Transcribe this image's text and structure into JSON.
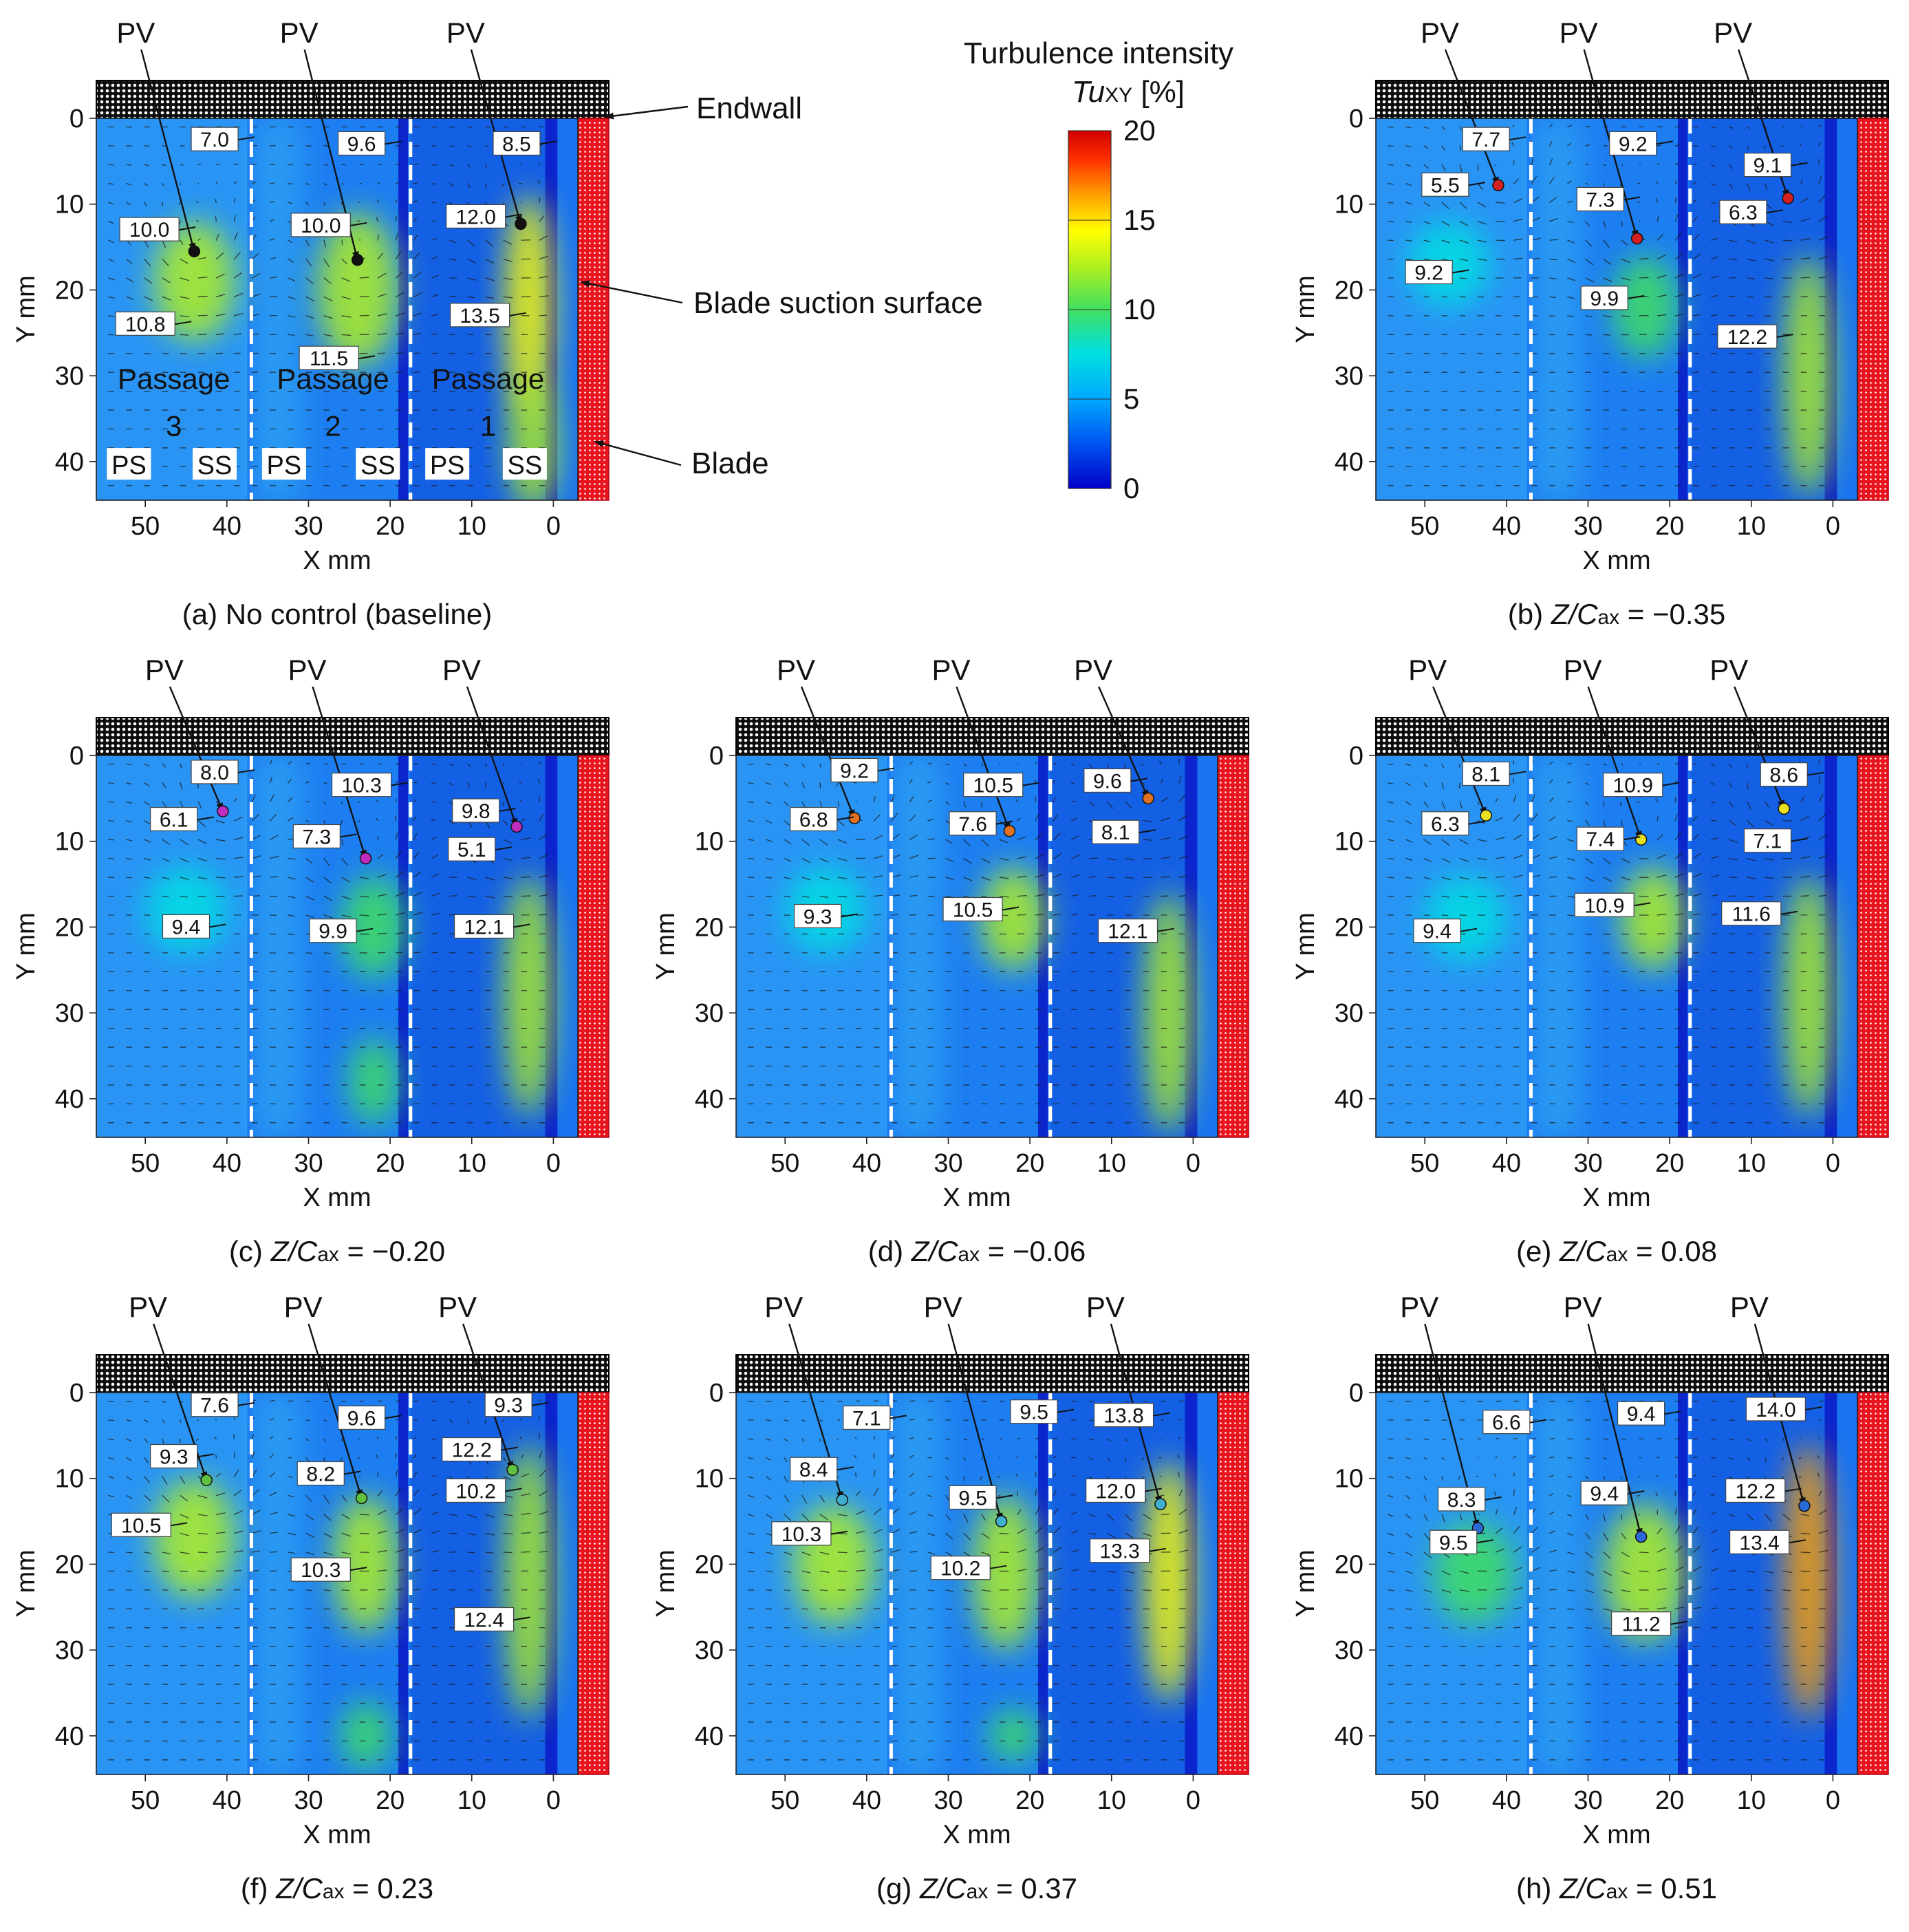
{
  "figure": {
    "colorbar": {
      "title_line1": "Turbulence intensity",
      "title_sym": "Tu",
      "title_sub": "XY",
      "title_unit": " [%]",
      "ticks": [
        0,
        5,
        10,
        15,
        20
      ],
      "range": [
        0,
        20
      ],
      "colors": [
        "#0000c8",
        "#0050f0",
        "#00a8ff",
        "#00e0e0",
        "#40e060",
        "#b0f020",
        "#ffff00",
        "#ffa000",
        "#ff3000",
        "#d00000"
      ]
    },
    "annotations": {
      "endwall": "Endwall",
      "suction": "Blade suction surface",
      "blade": "Blade",
      "passages": [
        {
          "name": "Passage",
          "num": "3"
        },
        {
          "name": "Passage",
          "num": "2"
        },
        {
          "name": "Passage",
          "num": "1"
        }
      ],
      "ps": "PS",
      "ss": "SS"
    },
    "colors": {
      "endwall": "#0d0d0d",
      "blade": "#e8141e",
      "vectors": "#1a1a1a",
      "divider": "#ffffff"
    }
  },
  "chart_data": [
    {
      "type": "heatmap",
      "id": "a",
      "caption_prefix": "(a) No control (baseline)",
      "caption_sym": "",
      "caption_sub": "",
      "caption_value": "",
      "xlabel": "X mm",
      "ylabel": "Y mm",
      "xlim": [
        56,
        -3
      ],
      "ylim": [
        44.5,
        0
      ],
      "xticks": [
        50,
        40,
        30,
        20,
        10,
        0
      ],
      "yticks": [
        0,
        10,
        20,
        30,
        40
      ],
      "pv_label": "PV",
      "pv_cores": [
        {
          "x": 44,
          "y": 15.5
        },
        {
          "x": 24,
          "y": 16.5
        },
        {
          "x": 4,
          "y": 12.3
        }
      ],
      "core_color": "#111111",
      "hotspots": [
        {
          "x": 44,
          "y": 19,
          "rx": 5,
          "ry": 7,
          "v": 10.5
        },
        {
          "x": 24,
          "y": 20,
          "rx": 5,
          "ry": 9,
          "v": 11
        },
        {
          "x": 3,
          "y": 22,
          "rx": 3,
          "ry": 13,
          "v": 13.5
        },
        {
          "x": 2.5,
          "y": 38,
          "rx": 3,
          "ry": 8,
          "v": 10
        }
      ],
      "value_labels": [
        {
          "text": "7.0",
          "x": 41.5,
          "y": 2.5
        },
        {
          "text": "9.6",
          "x": 23.5,
          "y": 3
        },
        {
          "text": "8.5",
          "x": 4.5,
          "y": 3
        },
        {
          "text": "10.0",
          "x": 49.5,
          "y": 13
        },
        {
          "text": "10.0",
          "x": 28.5,
          "y": 12.5
        },
        {
          "text": "12.0",
          "x": 9.5,
          "y": 11.5
        },
        {
          "text": "10.8",
          "x": 50,
          "y": 24
        },
        {
          "text": "11.5",
          "x": 27.5,
          "y": 28
        },
        {
          "text": "13.5",
          "x": 9,
          "y": 23
        }
      ]
    },
    {
      "type": "heatmap",
      "id": "b",
      "caption_prefix": "(b) ",
      "caption_sym": "Z/C",
      "caption_sub": "ax",
      "caption_value": " = −0.35",
      "xlabel": "X mm",
      "ylabel": "Y mm",
      "xlim": [
        56,
        -3
      ],
      "ylim": [
        44.5,
        0
      ],
      "xticks": [
        50,
        40,
        30,
        20,
        10,
        0
      ],
      "yticks": [
        0,
        10,
        20,
        30,
        40
      ],
      "pv_label": "PV",
      "pv_cores": [
        {
          "x": 41,
          "y": 7.8
        },
        {
          "x": 24,
          "y": 14
        },
        {
          "x": 5.5,
          "y": 9.3
        }
      ],
      "core_color": "#d42020",
      "hotspots": [
        {
          "x": 47,
          "y": 17,
          "rx": 5,
          "ry": 5,
          "v": 7.5
        },
        {
          "x": 23,
          "y": 22,
          "rx": 4,
          "ry": 6,
          "v": 9.5
        },
        {
          "x": 3,
          "y": 30,
          "rx": 3,
          "ry": 14,
          "v": 11.5
        }
      ],
      "value_labels": [
        {
          "text": "7.7",
          "x": 42.5,
          "y": 2.5
        },
        {
          "text": "5.5",
          "x": 47.5,
          "y": 7.8
        },
        {
          "text": "9.2",
          "x": 24.5,
          "y": 3
        },
        {
          "text": "7.3",
          "x": 28.5,
          "y": 9.5
        },
        {
          "text": "9.1",
          "x": 8,
          "y": 5.5
        },
        {
          "text": "6.3",
          "x": 11,
          "y": 11
        },
        {
          "text": "9.2",
          "x": 49.5,
          "y": 18
        },
        {
          "text": "9.9",
          "x": 28,
          "y": 21
        },
        {
          "text": "12.2",
          "x": 10.5,
          "y": 25.5
        }
      ]
    },
    {
      "type": "heatmap",
      "id": "c",
      "caption_prefix": "(c) ",
      "caption_sym": "Z/C",
      "caption_sub": "ax",
      "caption_value": " = −0.20",
      "xlabel": "X mm",
      "ylabel": "Y mm",
      "xlim": [
        56,
        -3
      ],
      "ylim": [
        44.5,
        0
      ],
      "xticks": [
        50,
        40,
        30,
        20,
        10,
        0
      ],
      "yticks": [
        0,
        10,
        20,
        30,
        40
      ],
      "pv_label": "PV",
      "pv_cores": [
        {
          "x": 40.5,
          "y": 6.5
        },
        {
          "x": 23,
          "y": 12
        },
        {
          "x": 4.5,
          "y": 8.3
        }
      ],
      "core_color": "#c02cc0",
      "hotspots": [
        {
          "x": 45,
          "y": 18,
          "rx": 5,
          "ry": 5,
          "v": 7.5
        },
        {
          "x": 22,
          "y": 20,
          "rx": 4,
          "ry": 6,
          "v": 9.5
        },
        {
          "x": 3,
          "y": 28,
          "rx": 3,
          "ry": 14,
          "v": 11.5
        },
        {
          "x": 22,
          "y": 38,
          "rx": 3,
          "ry": 5,
          "v": 9
        }
      ],
      "value_labels": [
        {
          "text": "8.0",
          "x": 41.5,
          "y": 2
        },
        {
          "text": "6.1",
          "x": 46.5,
          "y": 7.5
        },
        {
          "text": "10.3",
          "x": 23.5,
          "y": 3.5
        },
        {
          "text": "7.3",
          "x": 29,
          "y": 9.5
        },
        {
          "text": "9.8",
          "x": 9.5,
          "y": 6.5
        },
        {
          "text": "5.1",
          "x": 10,
          "y": 11
        },
        {
          "text": "9.4",
          "x": 45,
          "y": 20
        },
        {
          "text": "9.9",
          "x": 27,
          "y": 20.5
        },
        {
          "text": "12.1",
          "x": 8.5,
          "y": 20
        }
      ]
    },
    {
      "type": "heatmap",
      "id": "d",
      "caption_prefix": "(d) ",
      "caption_sym": "Z/C",
      "caption_sub": "ax",
      "caption_value": " = −0.06",
      "xlabel": "X mm",
      "ylabel": "Y mm",
      "xlim": [
        56,
        -3
      ],
      "ylim": [
        44.5,
        0
      ],
      "xticks": [
        50,
        40,
        30,
        20,
        10,
        0
      ],
      "yticks": [
        0,
        10,
        20,
        30,
        40
      ],
      "pv_label": "PV",
      "pv_cores": [
        {
          "x": 41.5,
          "y": 7.3
        },
        {
          "x": 22.5,
          "y": 8.8
        },
        {
          "x": 5.5,
          "y": 5
        }
      ],
      "core_color": "#e07020",
      "hotspots": [
        {
          "x": 45,
          "y": 18,
          "rx": 5,
          "ry": 5,
          "v": 7.5
        },
        {
          "x": 22,
          "y": 19,
          "rx": 4,
          "ry": 6,
          "v": 10
        },
        {
          "x": 3,
          "y": 30,
          "rx": 3,
          "ry": 14,
          "v": 11.5
        }
      ],
      "value_labels": [
        {
          "text": "9.2",
          "x": 41.5,
          "y": 1.8
        },
        {
          "text": "6.8",
          "x": 46.5,
          "y": 7.5
        },
        {
          "text": "10.5",
          "x": 24.5,
          "y": 3.5
        },
        {
          "text": "7.6",
          "x": 27,
          "y": 8
        },
        {
          "text": "9.6",
          "x": 10.5,
          "y": 3
        },
        {
          "text": "8.1",
          "x": 9.5,
          "y": 9
        },
        {
          "text": "9.3",
          "x": 46,
          "y": 18.8
        },
        {
          "text": "10.5",
          "x": 27,
          "y": 18
        },
        {
          "text": "12.1",
          "x": 8,
          "y": 20.5
        }
      ]
    },
    {
      "type": "heatmap",
      "id": "e",
      "caption_prefix": "(e) ",
      "caption_sym": "Z/C",
      "caption_sub": "ax",
      "caption_value": " = 0.08",
      "xlabel": "X mm",
      "ylabel": "Y mm",
      "xlim": [
        56,
        -3
      ],
      "ylim": [
        44.5,
        0
      ],
      "xticks": [
        50,
        40,
        30,
        20,
        10,
        0
      ],
      "yticks": [
        0,
        10,
        20,
        30,
        40
      ],
      "pv_label": "PV",
      "pv_cores": [
        {
          "x": 42.5,
          "y": 7
        },
        {
          "x": 23.5,
          "y": 9.8
        },
        {
          "x": 6,
          "y": 6.2
        }
      ],
      "core_color": "#e8e020",
      "hotspots": [
        {
          "x": 45,
          "y": 19,
          "rx": 5,
          "ry": 5,
          "v": 7.5
        },
        {
          "x": 22,
          "y": 19,
          "rx": 4,
          "ry": 6,
          "v": 10
        },
        {
          "x": 3,
          "y": 28,
          "rx": 3,
          "ry": 14,
          "v": 11.5
        }
      ],
      "value_labels": [
        {
          "text": "8.1",
          "x": 42.5,
          "y": 2.2
        },
        {
          "text": "6.3",
          "x": 47.5,
          "y": 8
        },
        {
          "text": "10.9",
          "x": 24.5,
          "y": 3.5
        },
        {
          "text": "7.4",
          "x": 28.5,
          "y": 9.8
        },
        {
          "text": "8.6",
          "x": 6,
          "y": 2.3
        },
        {
          "text": "7.1",
          "x": 8,
          "y": 10
        },
        {
          "text": "9.4",
          "x": 48.5,
          "y": 20.5
        },
        {
          "text": "10.9",
          "x": 28,
          "y": 17.5
        },
        {
          "text": "11.6",
          "x": 10,
          "y": 18.5
        }
      ]
    },
    {
      "type": "heatmap",
      "id": "f",
      "caption_prefix": "(f) ",
      "caption_sym": "Z/C",
      "caption_sub": "ax",
      "caption_value": " = 0.23",
      "xlabel": "X mm",
      "ylabel": "Y mm",
      "xlim": [
        56,
        -3
      ],
      "ylim": [
        44.5,
        0
      ],
      "xticks": [
        50,
        40,
        30,
        20,
        10,
        0
      ],
      "yticks": [
        0,
        10,
        20,
        30,
        40
      ],
      "pv_label": "PV",
      "pv_cores": [
        {
          "x": 42.5,
          "y": 10.2
        },
        {
          "x": 23.5,
          "y": 12.3
        },
        {
          "x": 5,
          "y": 9
        }
      ],
      "core_color": "#60c040",
      "hotspots": [
        {
          "x": 44,
          "y": 17,
          "rx": 5,
          "ry": 7,
          "v": 10
        },
        {
          "x": 23,
          "y": 20,
          "rx": 4,
          "ry": 8,
          "v": 10.5
        },
        {
          "x": 3,
          "y": 22,
          "rx": 3,
          "ry": 16,
          "v": 12
        },
        {
          "x": 23,
          "y": 40,
          "rx": 3,
          "ry": 4,
          "v": 9
        }
      ],
      "value_labels": [
        {
          "text": "7.6",
          "x": 41.5,
          "y": 1.5
        },
        {
          "text": "9.6",
          "x": 23.5,
          "y": 3
        },
        {
          "text": "9.3",
          "x": 5.5,
          "y": 1.5
        },
        {
          "text": "9.3",
          "x": 46.5,
          "y": 7.5
        },
        {
          "text": "8.2",
          "x": 28.5,
          "y": 9.5
        },
        {
          "text": "12.2",
          "x": 10,
          "y": 6.7
        },
        {
          "text": "10.2",
          "x": 9.5,
          "y": 11.5
        },
        {
          "text": "10.5",
          "x": 50.5,
          "y": 15.5
        },
        {
          "text": "10.3",
          "x": 28.5,
          "y": 20.7
        },
        {
          "text": "12.4",
          "x": 8.5,
          "y": 26.5
        }
      ]
    },
    {
      "type": "heatmap",
      "id": "g",
      "caption_prefix": "(g) ",
      "caption_sym": "Z/C",
      "caption_sub": "ax",
      "caption_value": " = 0.37",
      "xlabel": "X mm",
      "ylabel": "Y mm",
      "xlim": [
        56,
        -3
      ],
      "ylim": [
        44.5,
        0
      ],
      "xticks": [
        50,
        40,
        30,
        20,
        10,
        0
      ],
      "yticks": [
        0,
        10,
        20,
        30,
        40
      ],
      "pv_label": "PV",
      "pv_cores": [
        {
          "x": 43,
          "y": 12.5
        },
        {
          "x": 23.5,
          "y": 15
        },
        {
          "x": 4,
          "y": 13
        }
      ],
      "core_color": "#40b0d0",
      "hotspots": [
        {
          "x": 44,
          "y": 20,
          "rx": 5,
          "ry": 7,
          "v": 10
        },
        {
          "x": 23,
          "y": 21,
          "rx": 4,
          "ry": 9,
          "v": 10.5
        },
        {
          "x": 3,
          "y": 22,
          "rx": 3,
          "ry": 14,
          "v": 14
        },
        {
          "x": 22,
          "y": 40,
          "rx": 3,
          "ry": 3,
          "v": 9
        }
      ],
      "value_labels": [
        {
          "text": "7.1",
          "x": 40,
          "y": 3
        },
        {
          "text": "9.5",
          "x": 19.5,
          "y": 2.3
        },
        {
          "text": "13.8",
          "x": 8.5,
          "y": 2.7
        },
        {
          "text": "8.4",
          "x": 46.5,
          "y": 9
        },
        {
          "text": "9.5",
          "x": 27,
          "y": 12.3
        },
        {
          "text": "12.0",
          "x": 9.5,
          "y": 11.5
        },
        {
          "text": "10.3",
          "x": 48,
          "y": 16.5
        },
        {
          "text": "10.2",
          "x": 28.5,
          "y": 20.5
        },
        {
          "text": "13.3",
          "x": 9,
          "y": 18.5
        }
      ]
    },
    {
      "type": "heatmap",
      "id": "h",
      "caption_prefix": "(h) ",
      "caption_sym": "Z/C",
      "caption_sub": "ax",
      "caption_value": " = 0.51",
      "xlabel": "X mm",
      "ylabel": "Y mm",
      "xlim": [
        56,
        -3
      ],
      "ylim": [
        44.5,
        0
      ],
      "xticks": [
        50,
        40,
        30,
        20,
        10,
        0
      ],
      "yticks": [
        0,
        10,
        20,
        30,
        40
      ],
      "pv_label": "PV",
      "pv_cores": [
        {
          "x": 43.5,
          "y": 15.8
        },
        {
          "x": 23.5,
          "y": 16.8
        },
        {
          "x": 3.5,
          "y": 13.2
        }
      ],
      "core_color": "#2a6ad8",
      "hotspots": [
        {
          "x": 44,
          "y": 21,
          "rx": 5,
          "ry": 6,
          "v": 9.5
        },
        {
          "x": 23,
          "y": 21,
          "rx": 5,
          "ry": 8,
          "v": 11
        },
        {
          "x": 3,
          "y": 22,
          "rx": 3,
          "ry": 16,
          "v": 14.5
        }
      ],
      "value_labels": [
        {
          "text": "6.6",
          "x": 40,
          "y": 3.5
        },
        {
          "text": "9.4",
          "x": 23.5,
          "y": 2.5
        },
        {
          "text": "14.0",
          "x": 7,
          "y": 2
        },
        {
          "text": "8.3",
          "x": 45.5,
          "y": 12.5
        },
        {
          "text": "9.4",
          "x": 28,
          "y": 11.8
        },
        {
          "text": "12.2",
          "x": 9.5,
          "y": 11.5
        },
        {
          "text": "9.5",
          "x": 46.5,
          "y": 17.5
        },
        {
          "text": "11.2",
          "x": 23.5,
          "y": 27
        },
        {
          "text": "13.4",
          "x": 9,
          "y": 17.5
        }
      ]
    }
  ]
}
